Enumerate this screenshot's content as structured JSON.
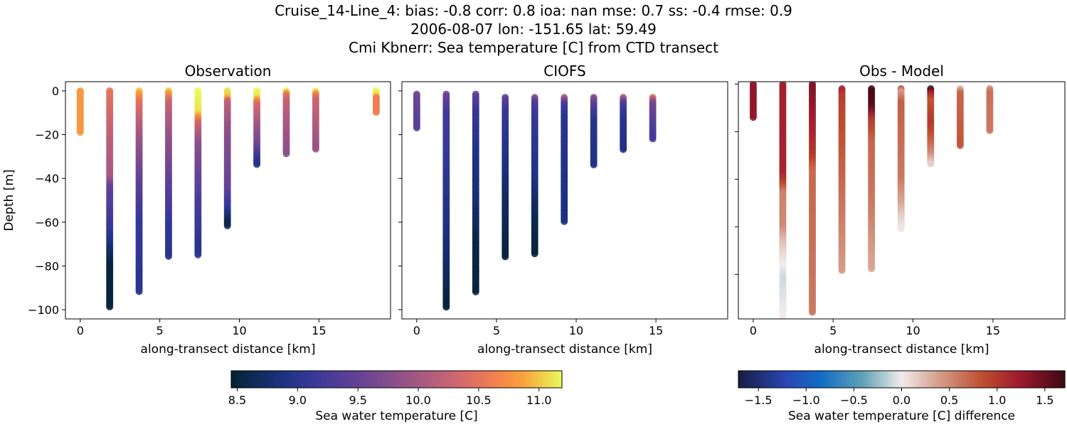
{
  "title_lines": [
    "Cruise_14-Line_4: bias: -0.8  corr: 0.8  ioa: nan  mse: 0.7  ss: -0.4  rmse: 0.9",
    "2006-08-07 lon: -151.65 lat: 59.49",
    "Cmi Kbnerr: Sea temperature [C] from CTD transect"
  ],
  "colormaps": {
    "thermal": [
      [
        0,
        "#042333"
      ],
      [
        0.15,
        "#1c3180"
      ],
      [
        0.25,
        "#38399a"
      ],
      [
        0.35,
        "#583f98"
      ],
      [
        0.5,
        "#8c5089"
      ],
      [
        0.6,
        "#b15c7f"
      ],
      [
        0.7,
        "#d66a6b"
      ],
      [
        0.8,
        "#f3814c"
      ],
      [
        0.88,
        "#f9a13d"
      ],
      [
        1,
        "#e8fa5b"
      ]
    ],
    "balance": [
      [
        0,
        "#181c43"
      ],
      [
        0.15,
        "#2a47b5"
      ],
      [
        0.25,
        "#0f6cc6"
      ],
      [
        0.38,
        "#5fa1b5"
      ],
      [
        0.5,
        "#f1ecec"
      ],
      [
        0.62,
        "#d39a86"
      ],
      [
        0.75,
        "#bd4c2f"
      ],
      [
        0.86,
        "#9e1a2f"
      ],
      [
        1,
        "#3c0912"
      ]
    ]
  },
  "chart_data": [
    {
      "type": "scatter",
      "title": "Observation",
      "xlabel": "along-transect distance [km]",
      "ylabel": "Depth [m]",
      "xlim": [
        -0.93,
        19.5
      ],
      "ylim": [
        -104.2,
        4.2
      ],
      "xticks": [
        "0",
        "5",
        "10",
        "15"
      ],
      "yticks": [
        "0",
        "−20",
        "−40",
        "−60",
        "−80",
        "−100"
      ],
      "colormap": "thermal",
      "color_range": [
        8.45,
        11.19
      ],
      "profiles": [
        {
          "x": 0,
          "top": 0,
          "bottom": -19,
          "values": [
            [
              0,
              10.8
            ],
            [
              -19,
              10.8
            ]
          ]
        },
        {
          "x": 1.85,
          "top": 0,
          "bottom": -99,
          "values": [
            [
              0,
              10.5
            ],
            [
              -20,
              10.2
            ],
            [
              -40,
              10.0
            ],
            [
              -44,
              9.5
            ],
            [
              -64,
              9.1
            ],
            [
              -74,
              8.7
            ],
            [
              -80,
              8.5
            ],
            [
              -99,
              8.5
            ]
          ]
        },
        {
          "x": 3.7,
          "top": 0,
          "bottom": -92,
          "values": [
            [
              0,
              11.0
            ],
            [
              -5,
              10.5
            ],
            [
              -20,
              10.0
            ],
            [
              -40,
              9.5
            ],
            [
              -60,
              9.1
            ],
            [
              -92,
              9.0
            ]
          ]
        },
        {
          "x": 5.55,
          "top": 0,
          "bottom": -76,
          "values": [
            [
              0,
              11.0
            ],
            [
              -5,
              10.3
            ],
            [
              -20,
              9.9
            ],
            [
              -40,
              9.5
            ],
            [
              -60,
              9.1
            ],
            [
              -76,
              9.0
            ]
          ]
        },
        {
          "x": 7.4,
          "top": 0,
          "bottom": -75,
          "values": [
            [
              0,
              11.2
            ],
            [
              -10,
              11.1
            ],
            [
              -15,
              10.3
            ],
            [
              -25,
              9.8
            ],
            [
              -45,
              9.4
            ],
            [
              -70,
              9.0
            ],
            [
              -75,
              9.0
            ]
          ]
        },
        {
          "x": 9.25,
          "top": 0,
          "bottom": -62,
          "values": [
            [
              0,
              11.1
            ],
            [
              -3,
              11.0
            ],
            [
              -5,
              10.2
            ],
            [
              -20,
              9.8
            ],
            [
              -45,
              9.5
            ],
            [
              -55,
              9.0
            ],
            [
              -60,
              8.6
            ],
            [
              -62,
              8.6
            ]
          ]
        },
        {
          "x": 11.1,
          "top": 0,
          "bottom": -34,
          "values": [
            [
              0,
              11.2
            ],
            [
              -3,
              11.1
            ],
            [
              -6,
              10.4
            ],
            [
              -15,
              10.0
            ],
            [
              -25,
              9.6
            ],
            [
              -32,
              9.0
            ],
            [
              -34,
              8.9
            ]
          ]
        },
        {
          "x": 12.95,
          "top": 0,
          "bottom": -29,
          "values": [
            [
              0,
              11.2
            ],
            [
              -2,
              10.5
            ],
            [
              -5,
              10.2
            ],
            [
              -29,
              9.8
            ]
          ]
        },
        {
          "x": 14.8,
          "top": 0,
          "bottom": -27,
          "values": [
            [
              0,
              11.2
            ],
            [
              -2,
              10.6
            ],
            [
              -4,
              10.3
            ],
            [
              -27,
              9.9
            ]
          ]
        },
        {
          "x": 18.6,
          "top": 0,
          "bottom": -10,
          "values": [
            [
              0,
              11.2
            ],
            [
              -2,
              11.1
            ],
            [
              -3,
              10.6
            ],
            [
              -10,
              10.6
            ]
          ]
        }
      ]
    },
    {
      "type": "scatter",
      "title": "CIOFS",
      "xlabel": "along-transect distance [km]",
      "xlim": [
        -0.93,
        19.5
      ],
      "ylim": [
        -104.2,
        4.2
      ],
      "xticks": [
        "0",
        "5",
        "10",
        "15"
      ],
      "colormap": "thermal",
      "color_range": [
        8.45,
        11.19
      ],
      "profiles": [
        {
          "x": 0,
          "top": -1.5,
          "bottom": -17,
          "values": [
            [
              -1.5,
              9.6
            ],
            [
              -17,
              9.4
            ]
          ]
        },
        {
          "x": 1.85,
          "top": -1.5,
          "bottom": -99,
          "values": [
            [
              -1.5,
              9.6
            ],
            [
              -10,
              9.2
            ],
            [
              -30,
              9.1
            ],
            [
              -60,
              8.9
            ],
            [
              -80,
              8.7
            ],
            [
              -99,
              8.5
            ]
          ]
        },
        {
          "x": 3.7,
          "top": -1.5,
          "bottom": -92,
          "values": [
            [
              -1.5,
              9.5
            ],
            [
              -10,
              9.1
            ],
            [
              -30,
              8.9
            ],
            [
              -50,
              8.8
            ],
            [
              -70,
              8.55
            ],
            [
              -92,
              8.5
            ]
          ]
        },
        {
          "x": 5.55,
          "top": -3,
          "bottom": -76,
          "values": [
            [
              -3,
              9.5
            ],
            [
              -10,
              9.1
            ],
            [
              -30,
              8.9
            ],
            [
              -50,
              8.7
            ],
            [
              -76,
              8.5
            ]
          ]
        },
        {
          "x": 7.4,
          "top": -3,
          "bottom": -75,
          "values": [
            [
              -3,
              9.8
            ],
            [
              -6,
              9.3
            ],
            [
              -12,
              9.1
            ],
            [
              -40,
              8.9
            ],
            [
              -60,
              8.6
            ],
            [
              -75,
              8.5
            ]
          ]
        },
        {
          "x": 9.25,
          "top": -3,
          "bottom": -60,
          "values": [
            [
              -3,
              10.1
            ],
            [
              -6,
              9.3
            ],
            [
              -12,
              9.0
            ],
            [
              -60,
              8.85
            ]
          ]
        },
        {
          "x": 11.1,
          "top": -3,
          "bottom": -34,
          "values": [
            [
              -3,
              9.8
            ],
            [
              -8,
              9.3
            ],
            [
              -14,
              9.0
            ],
            [
              -34,
              8.9
            ]
          ]
        },
        {
          "x": 12.95,
          "top": -3,
          "bottom": -27,
          "values": [
            [
              -3,
              10.1
            ],
            [
              -6,
              9.3
            ],
            [
              -12,
              9.0
            ],
            [
              -27,
              8.9
            ]
          ]
        },
        {
          "x": 14.8,
          "top": -3,
          "bottom": -22,
          "values": [
            [
              -3,
              10.4
            ],
            [
              -6,
              9.6
            ],
            [
              -22,
              9.2
            ]
          ]
        }
      ]
    },
    {
      "type": "scatter",
      "title": "Obs - Model",
      "xlabel": "along-transect distance [km]",
      "xlim": [
        -0.93,
        19.5
      ],
      "ylim": [
        -98.7,
        1.0
      ],
      "xticks": [
        "0",
        "5",
        "10",
        "15"
      ],
      "colormap": "balance",
      "color_range": [
        -1.71,
        1.71
      ],
      "profiles": [
        {
          "x": 0,
          "top": 0,
          "bottom": -14,
          "values": [
            [
              0,
              1.3
            ],
            [
              -14,
              1.3
            ]
          ]
        },
        {
          "x": 1.85,
          "top": 0,
          "bottom": -104,
          "values": [
            [
              0,
              1.2
            ],
            [
              -38,
              1.15
            ],
            [
              -42,
              0.9
            ],
            [
              -46,
              0.55
            ],
            [
              -60,
              0.5
            ],
            [
              -66,
              0.25
            ],
            [
              -74,
              0.05
            ],
            [
              -82,
              -0.1
            ],
            [
              -90,
              -0.05
            ],
            [
              -100,
              0.02
            ]
          ]
        },
        {
          "x": 3.7,
          "top": 0,
          "bottom": -96,
          "values": [
            [
              0,
              1.4
            ],
            [
              -20,
              1.15
            ],
            [
              -30,
              1.0
            ],
            [
              -36,
              0.7
            ],
            [
              -96,
              0.6
            ]
          ]
        },
        {
          "x": 5.55,
          "top": -2,
          "bottom": -79,
          "values": [
            [
              -2,
              1.2
            ],
            [
              -5,
              0.95
            ],
            [
              -40,
              0.7
            ],
            [
              -60,
              0.55
            ],
            [
              -79,
              0.4
            ]
          ]
        },
        {
          "x": 7.4,
          "top": -2,
          "bottom": -78,
          "values": [
            [
              -2,
              1.7
            ],
            [
              -10,
              1.55
            ],
            [
              -15,
              1.0
            ],
            [
              -25,
              0.7
            ],
            [
              -50,
              0.6
            ],
            [
              -70,
              0.4
            ],
            [
              -78,
              0.35
            ]
          ]
        },
        {
          "x": 9.25,
          "top": -2,
          "bottom": -61,
          "values": [
            [
              -2,
              0.9
            ],
            [
              -3,
              0.35
            ],
            [
              -8,
              0.75
            ],
            [
              -40,
              0.6
            ],
            [
              -50,
              0.35
            ],
            [
              -56,
              0.15
            ],
            [
              -61,
              0.03
            ]
          ]
        },
        {
          "x": 11.1,
          "top": -2,
          "bottom": -34,
          "values": [
            [
              -2,
              1.7
            ],
            [
              -4,
              1.2
            ],
            [
              -7,
              0.8
            ],
            [
              -17,
              1.0
            ],
            [
              -25,
              0.7
            ],
            [
              -30,
              0.45
            ],
            [
              -34,
              0.1
            ]
          ]
        },
        {
          "x": 12.95,
          "top": -2,
          "bottom": -26,
          "values": [
            [
              -2,
              0.3
            ],
            [
              -4,
              0.7
            ],
            [
              -26,
              0.8
            ]
          ]
        },
        {
          "x": 14.8,
          "top": -2,
          "bottom": -20,
          "values": [
            [
              -2,
              0.5
            ],
            [
              -4,
              0.65
            ],
            [
              -20,
              0.6
            ]
          ]
        }
      ]
    }
  ],
  "colorbars": [
    {
      "label": "Sea water temperature [C]",
      "colormap": "thermal",
      "range": [
        8.45,
        11.19
      ],
      "ticks": [
        8.5,
        9.0,
        9.5,
        10.0,
        10.5,
        11.0
      ],
      "tick_labels": [
        "8.5",
        "9.0",
        "9.5",
        "10.0",
        "10.5",
        "11.0"
      ]
    },
    {
      "label": "Sea water temperature [C] difference",
      "colormap": "balance",
      "range": [
        -1.71,
        1.71
      ],
      "ticks": [
        -1.5,
        -1.0,
        -0.5,
        0,
        0.5,
        1.0,
        1.5
      ],
      "tick_labels": [
        "−1.5",
        "−1.0",
        "−0.5",
        "0.0",
        "0.5",
        "1.0",
        "1.5"
      ]
    }
  ]
}
